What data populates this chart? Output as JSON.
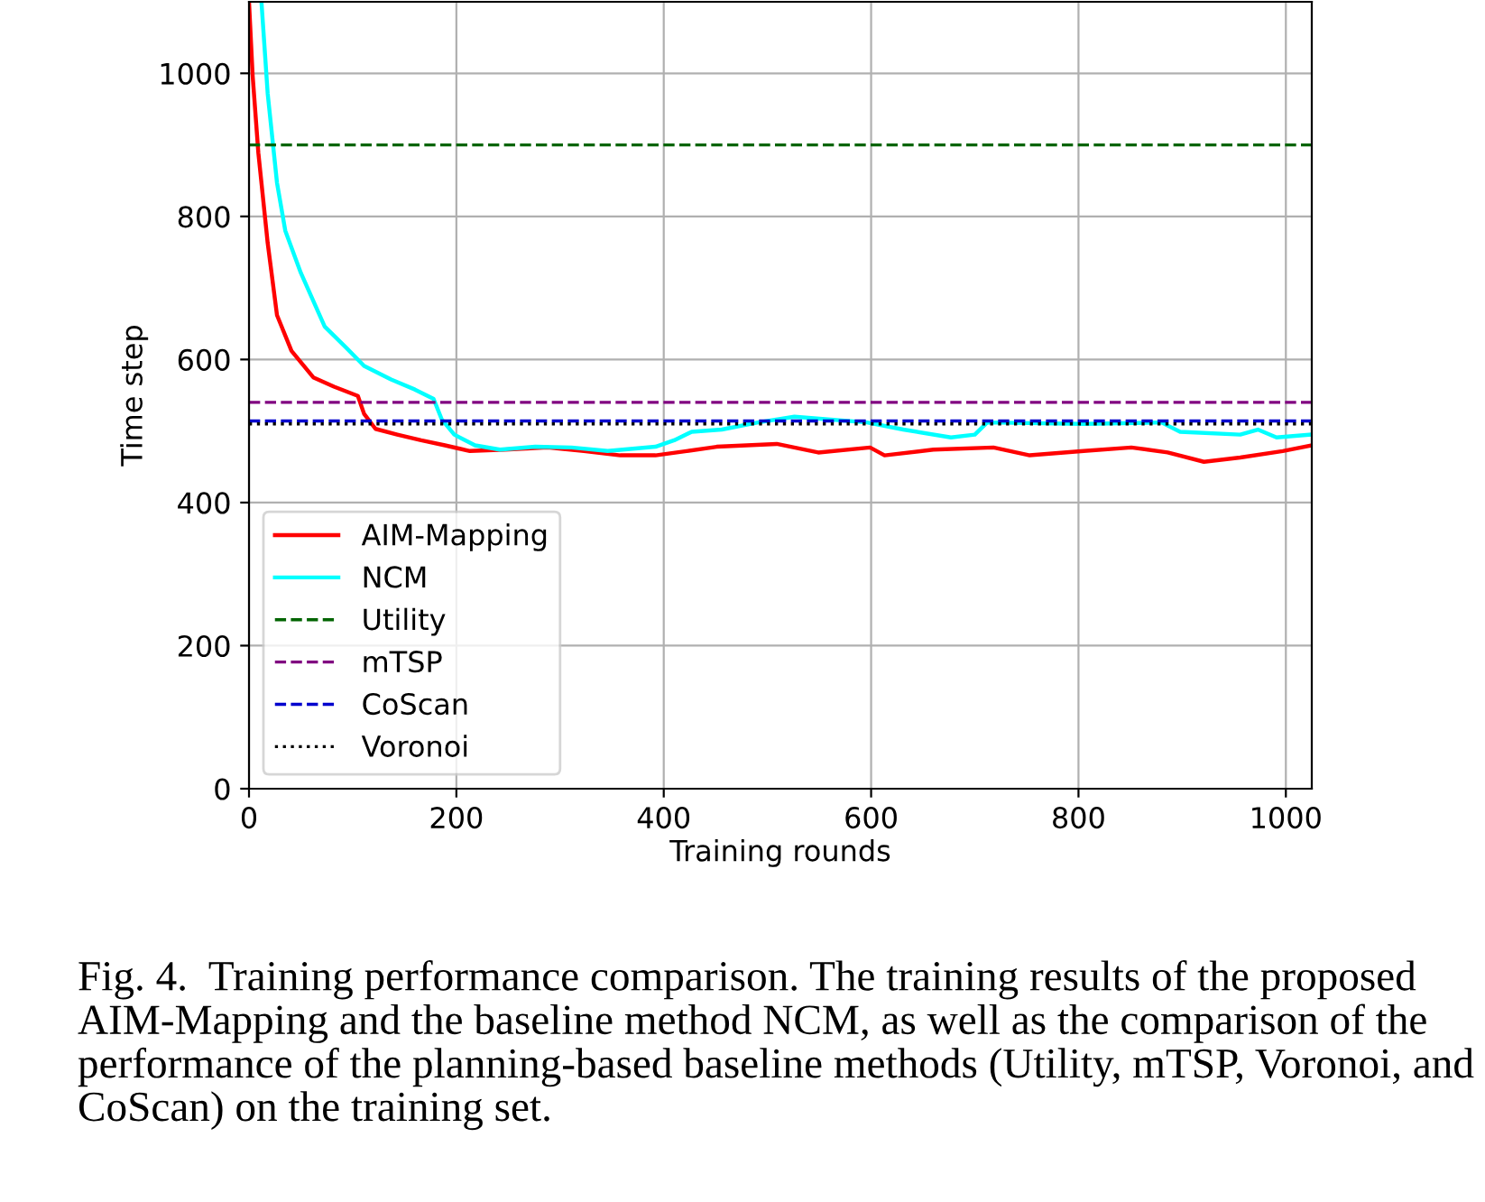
{
  "chart_data": {
    "type": "line",
    "xlabel": "Training rounds",
    "ylabel": "Time step",
    "annotations": [
      "Fig. 4.  Training performance comparison. The training results of the proposed AIM-Mapping and the baseline method NCM, as well as the comparison of the performance of the planning-based baseline methods (Utility, mTSP, Voronoi, and CoScan) on the training set."
    ],
    "series": [
      {
        "name": "AIM-Mapping",
        "color": "#ff0000",
        "x": [
          0,
          3.5,
          9,
          18,
          27,
          41,
          62,
          82,
          105,
          111,
          122,
          143,
          166,
          189,
          213,
          247,
          288,
          323,
          358,
          392,
          422,
          451,
          509,
          549,
          599,
          613,
          660,
          718,
          753,
          805,
          851,
          886,
          921,
          956,
          997,
          1025
        ],
        "values": [
          1100,
          997,
          889,
          763,
          662,
          612,
          575,
          562,
          549,
          524,
          503,
          495,
          487,
          480,
          472,
          474,
          477,
          472,
          466,
          466,
          472,
          478,
          482,
          470,
          477,
          466,
          474,
          477,
          466,
          472,
          477,
          470,
          457,
          463,
          472,
          480
        ]
      },
      {
        "name": "NCM",
        "color": "#00ffff",
        "x": [
          12,
          18,
          27,
          35,
          50,
          73,
          94,
          111,
          137,
          160,
          178,
          186,
          198,
          218,
          242,
          276,
          311,
          346,
          392,
          410,
          427,
          456,
          491,
          526,
          596,
          631,
          677,
          700,
          712,
          805,
          880,
          898,
          956,
          973,
          991,
          1025
        ],
        "values": [
          1100,
          972,
          847,
          780,
          721,
          646,
          616,
          591,
          572,
          558,
          545,
          516,
          495,
          480,
          474,
          478,
          477,
          472,
          478,
          487,
          499,
          502,
          512,
          520,
          512,
          502,
          491,
          495,
          512,
          510,
          512,
          499,
          495,
          502,
          491,
          495
        ]
      }
    ],
    "ref_lines": [
      {
        "axis": "y",
        "value": 900,
        "label": "Utility",
        "color": "#006400",
        "line_style": "dashed"
      },
      {
        "axis": "y",
        "value": 540,
        "label": "mTSP",
        "color": "#800080",
        "line_style": "dashed"
      },
      {
        "axis": "y",
        "value": 514,
        "label": "CoScan",
        "color": "#0000cd",
        "line_style": "dashed"
      },
      {
        "axis": "y",
        "value": 510,
        "label": "Voronoi",
        "color": "#000000",
        "line_style": "dotted"
      }
    ],
    "xlim": [
      0,
      1025
    ],
    "ylim": [
      0,
      1100
    ],
    "xticks": [
      0,
      200,
      400,
      600,
      800,
      1000
    ],
    "yticks": [
      0,
      200,
      400,
      600,
      800,
      1000
    ],
    "grid": true,
    "legend": "lower left"
  }
}
